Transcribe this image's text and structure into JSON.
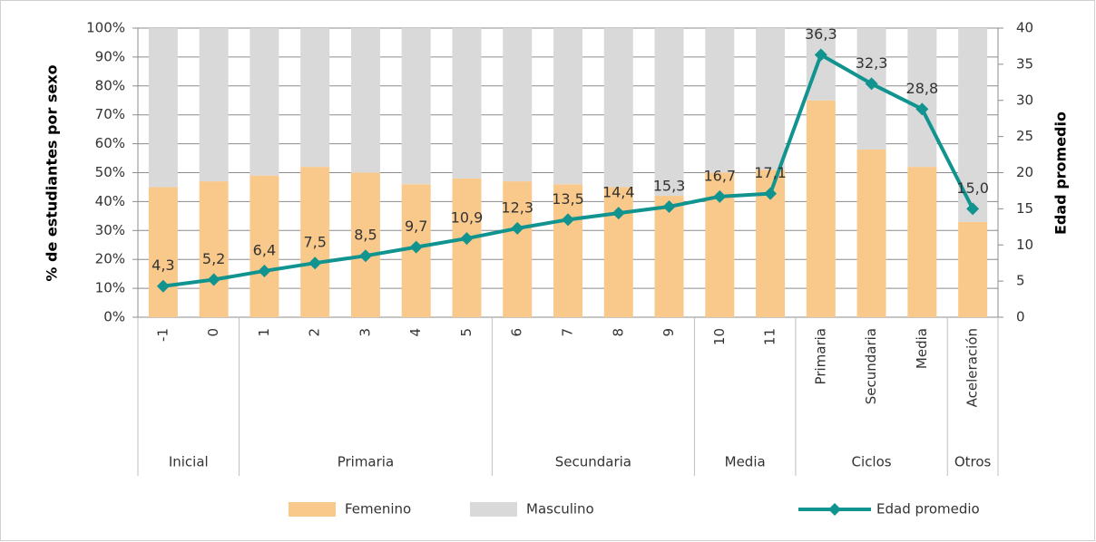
{
  "chart_data": {
    "type": "bar-line",
    "ylabel": "% de estudiantes por sexo",
    "y2label": "Edad promedio",
    "groups": [
      {
        "name": "Inicial",
        "categories": [
          "-1",
          "0"
        ]
      },
      {
        "name": "Primaria",
        "categories": [
          "1",
          "2",
          "3",
          "4",
          "5"
        ]
      },
      {
        "name": "Secundaria",
        "categories": [
          "6",
          "7",
          "8",
          "9"
        ]
      },
      {
        "name": "Media",
        "categories": [
          "10",
          "11"
        ]
      },
      {
        "name": "Ciclos",
        "categories": [
          "Primaria",
          "Secundaria",
          "Media"
        ]
      },
      {
        "name": "Otros",
        "categories": [
          "Aceleración"
        ]
      }
    ],
    "series": [
      {
        "name": "Femenino",
        "color": "#f9c98c",
        "kind": "bar",
        "values": [
          45,
          47,
          49,
          52,
          50,
          46,
          48,
          47,
          46,
          45,
          42,
          50,
          51,
          75,
          58,
          52,
          33
        ]
      },
      {
        "name": "Masculino",
        "color": "#d9d9d9",
        "kind": "bar",
        "values": [
          55,
          53,
          51,
          48,
          50,
          54,
          52,
          53,
          54,
          55,
          58,
          50,
          49,
          25,
          42,
          48,
          67
        ]
      },
      {
        "name": "Edad promedio",
        "color": "#11948f",
        "kind": "line",
        "axis": "y2",
        "values": [
          4.3,
          5.2,
          6.4,
          7.5,
          8.5,
          9.7,
          10.9,
          12.3,
          13.5,
          14.4,
          15.3,
          16.7,
          17.1,
          36.3,
          32.3,
          28.8,
          15.0
        ],
        "value_labels": [
          "4,3",
          "5,2",
          "6,4",
          "7,5",
          "8,5",
          "9,7",
          "10,9",
          "12,3",
          "13,5",
          "14,4",
          "15,3",
          "16,7",
          "17,1",
          "36,3",
          "32,3",
          "28,8",
          "15,0"
        ]
      }
    ],
    "ylim": [
      0,
      100
    ],
    "yticks": [
      {
        "value": 0,
        "label": "0%"
      },
      {
        "value": 10,
        "label": "10%"
      },
      {
        "value": 20,
        "label": "20%"
      },
      {
        "value": 30,
        "label": "30%"
      },
      {
        "value": 40,
        "label": "40%"
      },
      {
        "value": 50,
        "label": "50%"
      },
      {
        "value": 60,
        "label": "60%"
      },
      {
        "value": 70,
        "label": "70%"
      },
      {
        "value": 80,
        "label": "80%"
      },
      {
        "value": 90,
        "label": "90%"
      },
      {
        "value": 100,
        "label": "100%"
      }
    ],
    "y2lim": [
      0,
      40
    ],
    "y2ticks": [
      0,
      5,
      10,
      15,
      20,
      25,
      30,
      35,
      40
    ],
    "grid": true,
    "legend": "bottom"
  }
}
